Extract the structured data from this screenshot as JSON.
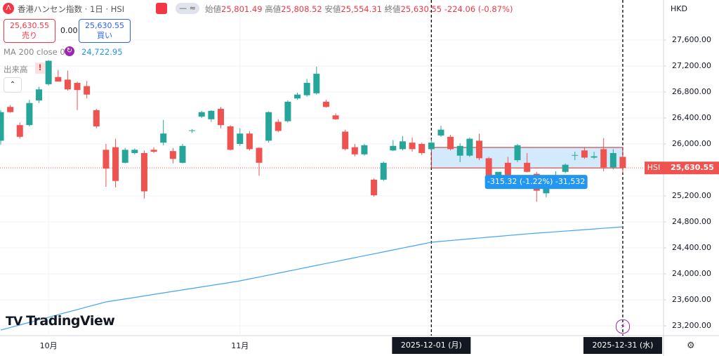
{
  "header": {
    "symbol_title": "香港ハンセン指数 · 1日 · HSI",
    "ohlc": [
      {
        "label": "始値",
        "value": "25,801.49"
      },
      {
        "label": "高値",
        "value": "25,808.52"
      },
      {
        "label": "安値",
        "value": "25,554.31"
      },
      {
        "label": "終値",
        "value": "25,630.55"
      }
    ],
    "change": "-224.06 (-0.87%)",
    "sell": {
      "price": "25,630.55",
      "label": "売り"
    },
    "spread": "0.00",
    "buy": {
      "price": "25,630.55",
      "label": "買い"
    },
    "ma": {
      "label": "MA 200 close 0",
      "value": "24,722.95"
    },
    "volume": "出来高"
  },
  "logo": "TradingView",
  "chart_data": {
    "type": "candlestick",
    "currency": "HKD",
    "symbol": "HSI",
    "last_price_label": "25,630.55",
    "categories": [
      null,
      null,
      null,
      null,
      null,
      "10月",
      null,
      null,
      null,
      null,
      null,
      null,
      null,
      null,
      null,
      null,
      null,
      null,
      null,
      null,
      null,
      null,
      null,
      null,
      null,
      "11月",
      null,
      null,
      null,
      null,
      null,
      null,
      null,
      null,
      null,
      null,
      null,
      null,
      null,
      null,
      null,
      null,
      null,
      null,
      null,
      "2025-12-01 (月)",
      null,
      null,
      null,
      null,
      null,
      null,
      null,
      null,
      null,
      null,
      null,
      null,
      null,
      null,
      null,
      null,
      null,
      null,
      null,
      "2025-12-31 (水)"
    ],
    "open": [
      26050,
      26570,
      26290,
      26290,
      26670,
      26920,
      27030,
      26990,
      26940,
      26890,
      26520,
      25910,
      25950,
      25710,
      25860,
      25860,
      25910,
      26020,
      25890,
      25710,
      26200,
      26420,
      26380,
      26540,
      26270,
      26000,
      26160,
      25940,
      26050,
      26340,
      26350,
      26700,
      26750,
      26780,
      26650,
      26440,
      26190,
      25950,
      25840,
      25450,
      25450,
      25900,
      25920,
      26020,
      26000,
      25920,
      26130,
      26110,
      25820,
      25820,
      26050,
      25780,
      25460,
      25710,
      25750,
      25710,
      25540,
      25240,
      25400,
      25570,
      25820,
      25900,
      25790,
      25920,
      25640,
      25801.49
    ],
    "high": [
      26520,
      26600,
      26330,
      26680,
      26880,
      27290,
      27140,
      27130,
      26960,
      26970,
      26540,
      26000,
      26080,
      25940,
      25930,
      25900,
      25950,
      26370,
      25940,
      26000,
      26230,
      26510,
      26520,
      26570,
      26290,
      26240,
      26200,
      25950,
      26500,
      26380,
      26670,
      26790,
      27000,
      27190,
      26680,
      26470,
      26220,
      26000,
      26000,
      25470,
      25730,
      26060,
      26120,
      26100,
      26020,
      26080,
      26280,
      26140,
      26010,
      26100,
      26160,
      25800,
      25570,
      25800,
      26000,
      25860,
      25570,
      25500,
      25580,
      25700,
      25880,
      25940,
      25880,
      26090,
      25920,
      25808.52
    ],
    "low": [
      25990,
      26480,
      26080,
      26270,
      26630,
      26900,
      26980,
      26820,
      26520,
      26700,
      26240,
      25340,
      25330,
      25700,
      25840,
      25160,
      25860,
      25980,
      25700,
      25700,
      26170,
      26400,
      26340,
      26240,
      25900,
      25970,
      25900,
      25510,
      26020,
      26180,
      26330,
      26680,
      26730,
      26760,
      26560,
      26370,
      25900,
      25810,
      25820,
      25190,
      25430,
      25890,
      25900,
      25880,
      25830,
      25900,
      26110,
      25900,
      25720,
      25800,
      25750,
      25480,
      25420,
      25420,
      25720,
      25560,
      25110,
      25180,
      25380,
      25550,
      25750,
      25770,
      25770,
      25580,
      25610,
      25554.31
    ],
    "close": [
      26490,
      26490,
      26110,
      26630,
      26840,
      27280,
      26960,
      26840,
      26830,
      26760,
      26270,
      25620,
      25430,
      25910,
      25910,
      25270,
      25880,
      26160,
      25770,
      25970,
      26210,
      26490,
      26510,
      26290,
      25910,
      26160,
      25920,
      25710,
      26490,
      26200,
      26650,
      26760,
      26940,
      27080,
      26570,
      26380,
      25920,
      25840,
      25980,
      25210,
      25710,
      25970,
      26040,
      25920,
      25860,
      26020,
      26220,
      25920,
      25970,
      26080,
      25780,
      25510,
      25570,
      25460,
      25980,
      25570,
      25280,
      25460,
      25510,
      25680,
      25830,
      25790,
      25810,
      25640,
      25860,
      25630.55
    ],
    "ma": {
      "name": "MA 200",
      "color": "#42a5f5",
      "values": [
        23135,
        23174,
        23214,
        23253,
        23293,
        23332,
        23371,
        23411,
        23450,
        23490,
        23529,
        23568,
        23591,
        23614,
        23637,
        23660,
        23684,
        23707,
        23730,
        23753,
        23776,
        23799,
        23822,
        23845,
        23868,
        23892,
        23922,
        23951,
        23981,
        24011,
        24041,
        24070,
        24100,
        24130,
        24160,
        24189,
        24219,
        24249,
        24279,
        24308,
        24338,
        24368,
        24398,
        24427,
        24457,
        24487,
        24500,
        24513,
        24526,
        24539,
        24552,
        24565,
        24577,
        24590,
        24603,
        24616,
        24627,
        24637,
        24648,
        24659,
        24669,
        24680,
        24691,
        24702,
        24712,
        24722.95
      ]
    },
    "up_color": "#26a69a",
    "down_color": "#ef5350",
    "measure": {
      "label": "-315.32 (-1.22%) -31,532",
      "high": 25945.87,
      "low": 25630.55
    },
    "ylim": [
      23049,
      28216
    ],
    "yticks": [
      {
        "value": 27600,
        "label": "27,600.00"
      },
      {
        "value": 27200,
        "label": "27,200.00"
      },
      {
        "value": 26800,
        "label": "26,800.00"
      },
      {
        "value": 26400,
        "label": "26,400.00"
      },
      {
        "value": 26000,
        "label": "26,000.00"
      },
      {
        "value": 25600,
        "label": "25,600.00"
      },
      {
        "value": 25200,
        "label": "25,200.00"
      },
      {
        "value": 24800,
        "label": "24,800.00"
      },
      {
        "value": 24400,
        "label": "24,400.00"
      },
      {
        "value": 24000,
        "label": "24,000.00"
      },
      {
        "value": 23600,
        "label": "23,600.00"
      },
      {
        "value": 23200,
        "label": "23,200.00"
      }
    ],
    "grid": true
  }
}
